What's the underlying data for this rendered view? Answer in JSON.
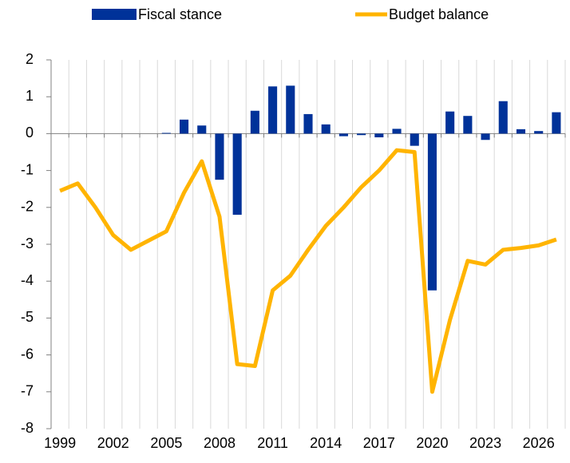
{
  "chart_data": {
    "type": "combo",
    "categories": [
      "1999",
      null,
      null,
      "2002",
      null,
      null,
      "2005",
      null,
      null,
      "2008",
      null,
      null,
      "2011",
      null,
      null,
      "2014",
      null,
      null,
      "2017",
      null,
      null,
      "2020",
      null,
      null,
      "2023",
      null,
      null,
      "2026",
      null
    ],
    "series": [
      {
        "name": "Fiscal stance",
        "type": "bar",
        "color": "#003299",
        "values": [
          null,
          null,
          null,
          null,
          null,
          null,
          0.02,
          0.38,
          0.22,
          -1.25,
          -2.2,
          0.62,
          1.28,
          1.3,
          0.53,
          0.25,
          -0.07,
          -0.04,
          -0.1,
          0.13,
          -0.33,
          -4.25,
          0.6,
          0.48,
          -0.17,
          0.88,
          0.12,
          0.07,
          0.58
        ]
      },
      {
        "name": "Budget balance",
        "type": "line",
        "color": "#ffb400",
        "values": [
          -1.55,
          -1.35,
          -2.0,
          -2.75,
          -3.15,
          -2.9,
          -2.65,
          -1.6,
          -0.75,
          -2.25,
          -6.25,
          -6.3,
          -4.25,
          -3.85,
          -3.15,
          -2.5,
          -2.0,
          -1.45,
          -1.0,
          -0.45,
          -0.5,
          -7.0,
          -5.05,
          -3.45,
          -3.55,
          -3.15,
          -3.1,
          -3.03,
          -2.87
        ]
      }
    ],
    "ylim": [
      -8,
      2
    ],
    "yticks": [
      -8,
      -7,
      -6,
      -5,
      -4,
      -3,
      -2,
      -1,
      0,
      1,
      2
    ],
    "grid": "vertical"
  }
}
